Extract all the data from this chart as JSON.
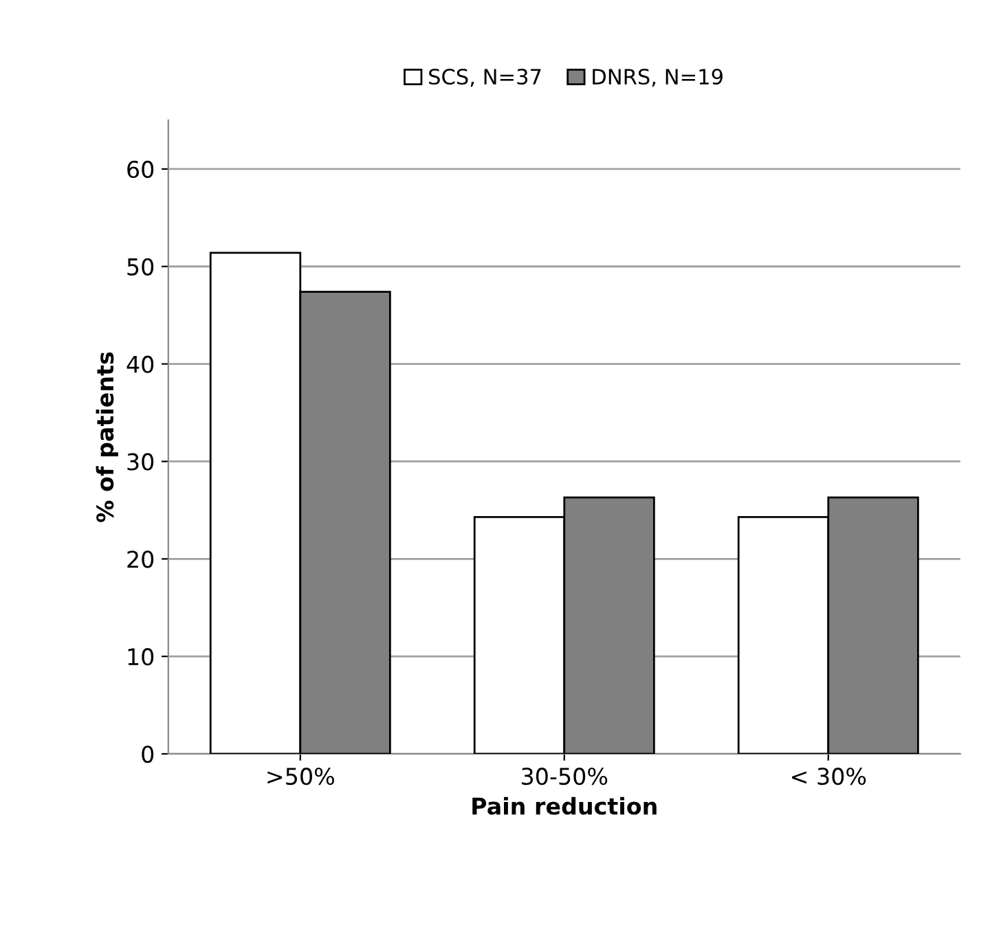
{
  "chart_data": {
    "type": "bar",
    "xlabel": "Pain reduction",
    "ylabel": "% of patients",
    "categories": [
      ">50%",
      "30-50%",
      "< 30%"
    ],
    "series": [
      {
        "name": "SCS, N=37",
        "color": "#ffffff",
        "values": [
          51.4,
          24.3,
          24.3
        ]
      },
      {
        "name": "DNRS, N=19",
        "color": "#808080",
        "values": [
          47.4,
          26.3,
          26.3
        ]
      }
    ],
    "ylim": [
      0,
      65
    ],
    "yticks": [
      0,
      10,
      20,
      30,
      40,
      50,
      60
    ],
    "grid": "y",
    "legend": "top"
  }
}
